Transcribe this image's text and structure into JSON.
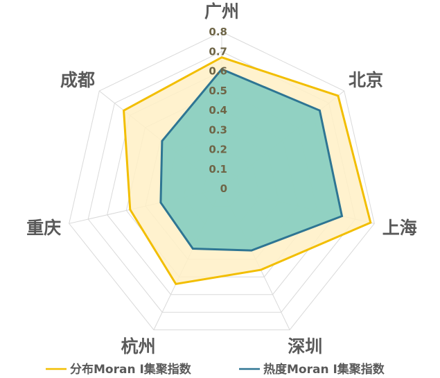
{
  "chart_data": {
    "type": "radar",
    "categories": [
      "广州",
      "北京",
      "上海",
      "深圳",
      "杭州",
      "重庆",
      "成都"
    ],
    "series": [
      {
        "name": "分布Moran I集聚指数",
        "values": [
          0.67,
          0.76,
          0.78,
          0.46,
          0.54,
          0.48,
          0.64
        ],
        "color": "#F2BE00",
        "fill": "#FFF0C5"
      },
      {
        "name": "热度Moran I集聚指数",
        "values": [
          0.61,
          0.64,
          0.63,
          0.35,
          0.34,
          0.32,
          0.39
        ],
        "color": "#2E7593",
        "fill": "#7ECBC0"
      }
    ],
    "range": [
      0,
      0.8
    ],
    "ticks": [
      "0",
      "0.1",
      "0.2",
      "0.3",
      "0.4",
      "0.5",
      "0.6",
      "0.7",
      "0.8"
    ],
    "grid": true,
    "legend": "bottom"
  }
}
